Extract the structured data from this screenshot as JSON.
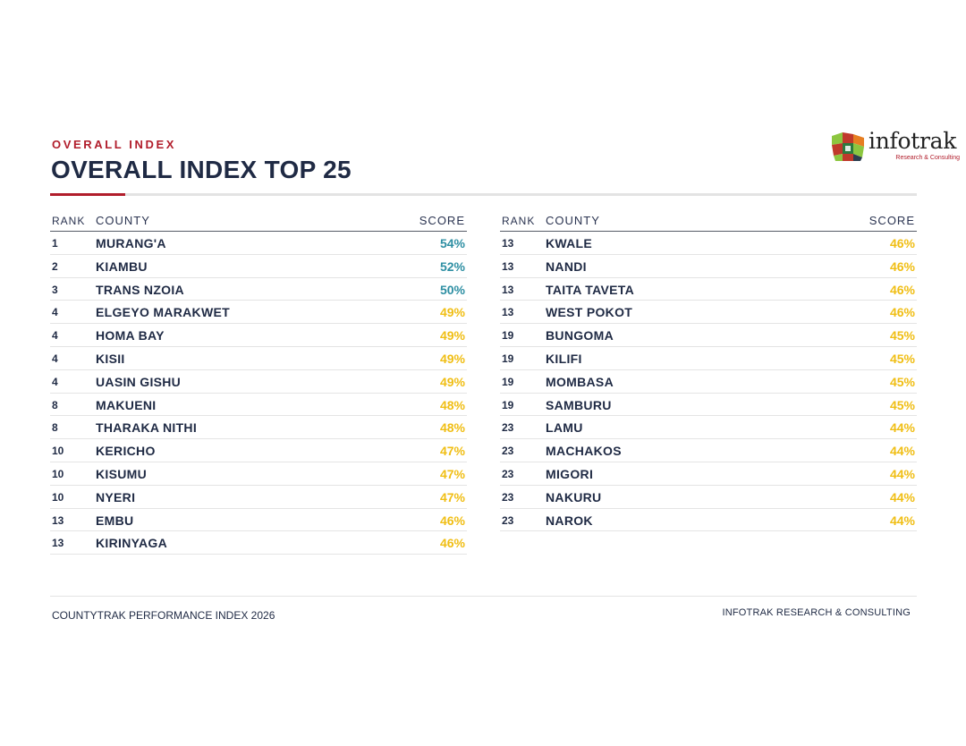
{
  "header": {
    "kicker": "OVERALL INDEX",
    "title": "OVERALL INDEX TOP 25"
  },
  "logo": {
    "name": "infotrak",
    "tagline": "Research & Consulting",
    "icon": "infotrak-logo-icon"
  },
  "table_headers": {
    "rank": "RANK",
    "county": "COUNTY",
    "score": "SCORE"
  },
  "colors": {
    "accent_red": "#b11d2b",
    "navy": "#1f2a44",
    "score_high_teal": "#2e8fa3",
    "score_yellow": "#f0be14"
  },
  "left_rows": [
    {
      "rank": "1",
      "county": "MURANG'A",
      "score": "54%",
      "tone": "teal"
    },
    {
      "rank": "2",
      "county": "KIAMBU",
      "score": "52%",
      "tone": "teal"
    },
    {
      "rank": "3",
      "county": "TRANS NZOIA",
      "score": "50%",
      "tone": "teal"
    },
    {
      "rank": "4",
      "county": "ELGEYO MARAKWET",
      "score": "49%",
      "tone": "yellow"
    },
    {
      "rank": "4",
      "county": "HOMA BAY",
      "score": "49%",
      "tone": "yellow"
    },
    {
      "rank": "4",
      "county": "KISII",
      "score": "49%",
      "tone": "yellow"
    },
    {
      "rank": "4",
      "county": "UASIN GISHU",
      "score": "49%",
      "tone": "yellow"
    },
    {
      "rank": "8",
      "county": "MAKUENI",
      "score": "48%",
      "tone": "yellow"
    },
    {
      "rank": "8",
      "county": "THARAKA NITHI",
      "score": "48%",
      "tone": "yellow"
    },
    {
      "rank": "10",
      "county": "KERICHO",
      "score": "47%",
      "tone": "yellow"
    },
    {
      "rank": "10",
      "county": "KISUMU",
      "score": "47%",
      "tone": "yellow"
    },
    {
      "rank": "10",
      "county": "NYERI",
      "score": "47%",
      "tone": "yellow"
    },
    {
      "rank": "13",
      "county": "EMBU",
      "score": "46%",
      "tone": "yellow"
    },
    {
      "rank": "13",
      "county": "KIRINYAGA",
      "score": "46%",
      "tone": "yellow"
    }
  ],
  "right_rows": [
    {
      "rank": "13",
      "county": "KWALE",
      "score": "46%",
      "tone": "yellow"
    },
    {
      "rank": "13",
      "county": "NANDI",
      "score": "46%",
      "tone": "yellow"
    },
    {
      "rank": "13",
      "county": "TAITA TAVETA",
      "score": "46%",
      "tone": "yellow"
    },
    {
      "rank": "13",
      "county": "WEST POKOT",
      "score": "46%",
      "tone": "yellow"
    },
    {
      "rank": "19",
      "county": "BUNGOMA",
      "score": "45%",
      "tone": "yellow"
    },
    {
      "rank": "19",
      "county": "KILIFI",
      "score": "45%",
      "tone": "yellow"
    },
    {
      "rank": "19",
      "county": "MOMBASA",
      "score": "45%",
      "tone": "yellow"
    },
    {
      "rank": "19",
      "county": "SAMBURU",
      "score": "45%",
      "tone": "yellow"
    },
    {
      "rank": "23",
      "county": "LAMU",
      "score": "44%",
      "tone": "yellow"
    },
    {
      "rank": "23",
      "county": "MACHAKOS",
      "score": "44%",
      "tone": "yellow"
    },
    {
      "rank": "23",
      "county": "MIGORI",
      "score": "44%",
      "tone": "yellow"
    },
    {
      "rank": "23",
      "county": "NAKURU",
      "score": "44%",
      "tone": "yellow"
    },
    {
      "rank": "23",
      "county": "NAROK",
      "score": "44%",
      "tone": "yellow"
    }
  ],
  "footer": {
    "left": "COUNTYTRAK PERFORMANCE INDEX 2026",
    "right": "INFOTRAK RESEARCH & CONSULTING"
  }
}
